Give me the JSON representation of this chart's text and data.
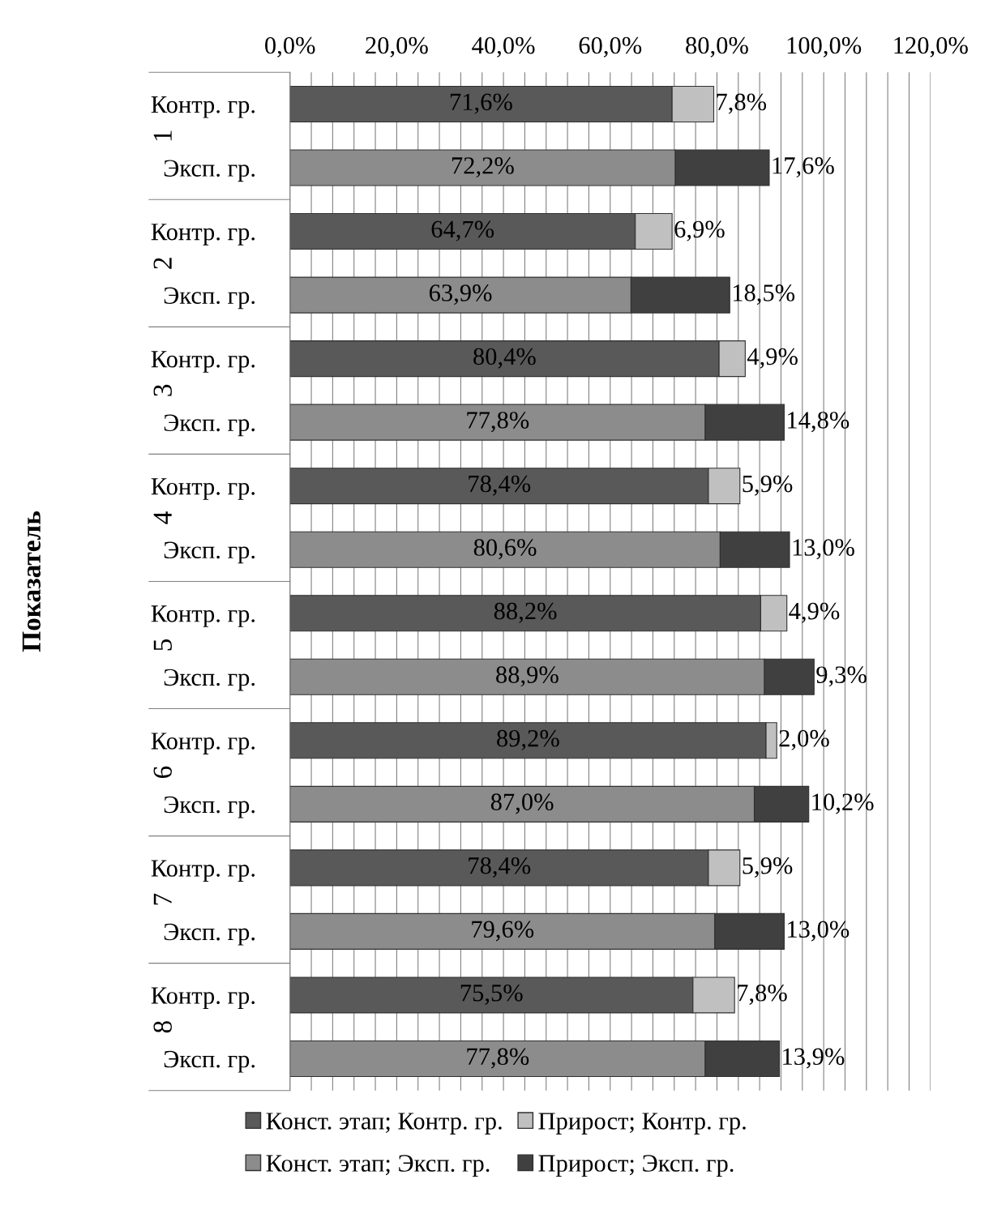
{
  "chart_data": {
    "type": "bar",
    "orientation": "horizontal",
    "stacked": true,
    "ylabel": "Показатель",
    "categories": [
      "Контр. гр.",
      "Эксп. гр.",
      "Контр. гр.",
      "Эксп. гр.",
      "Контр. гр.",
      "Эксп. гр.",
      "Контр. гр.",
      "Эксп. гр.",
      "Контр. гр.",
      "Эксп. гр.",
      "Контр. гр.",
      "Эксп. гр.",
      "Контр. гр.",
      "Эксп. гр.",
      "Контр. гр.",
      "Эксп. гр."
    ],
    "annotations": [
      "1",
      "2",
      "3",
      "4",
      "5",
      "6",
      "7",
      "8"
    ],
    "xlim": [
      0,
      120
    ],
    "xticks": [
      {
        "value": 0,
        "label": "0,0%"
      },
      {
        "value": 4,
        "label": null
      },
      {
        "value": 8,
        "label": null
      },
      {
        "value": 12,
        "label": null
      },
      {
        "value": 16,
        "label": null
      },
      {
        "value": 20,
        "label": "20,0%"
      },
      {
        "value": 24,
        "label": null
      },
      {
        "value": 28,
        "label": null
      },
      {
        "value": 32,
        "label": null
      },
      {
        "value": 36,
        "label": null
      },
      {
        "value": 40,
        "label": "40,0%"
      },
      {
        "value": 44,
        "label": null
      },
      {
        "value": 48,
        "label": null
      },
      {
        "value": 52,
        "label": null
      },
      {
        "value": 56,
        "label": null
      },
      {
        "value": 60,
        "label": "60,0%"
      },
      {
        "value": 64,
        "label": null
      },
      {
        "value": 68,
        "label": null
      },
      {
        "value": 72,
        "label": null
      },
      {
        "value": 76,
        "label": null
      },
      {
        "value": 80,
        "label": "80,0%"
      },
      {
        "value": 84,
        "label": null
      },
      {
        "value": 88,
        "label": null
      },
      {
        "value": 92,
        "label": null
      },
      {
        "value": 96,
        "label": null
      },
      {
        "value": 100,
        "label": "100,0%"
      },
      {
        "value": 104,
        "label": null
      },
      {
        "value": 108,
        "label": null
      },
      {
        "value": 112,
        "label": null
      },
      {
        "value": 116,
        "label": null
      },
      {
        "value": 120,
        "label": "120,0%"
      }
    ],
    "grid": "x",
    "legend": "bottom",
    "series": [
      {
        "name": "Конст. этап; Контр. гр.",
        "color": "#595959",
        "values": [
          71.6,
          null,
          64.7,
          null,
          80.4,
          null,
          78.4,
          null,
          88.2,
          null,
          89.2,
          null,
          78.4,
          null,
          75.5,
          null
        ],
        "value_labels": [
          "71,6%",
          null,
          "64,7%",
          null,
          "80,4%",
          null,
          "78,4%",
          null,
          "88,2%",
          null,
          "89,2%",
          null,
          "78,4%",
          null,
          "75,5%",
          null
        ]
      },
      {
        "name": "Прирост; Контр. гр.",
        "color": "#c0c0c0",
        "values": [
          7.8,
          null,
          6.9,
          null,
          4.9,
          null,
          5.9,
          null,
          4.9,
          null,
          2.0,
          null,
          5.9,
          null,
          7.8,
          null
        ],
        "value_labels": [
          "7,8%",
          null,
          "6,9%",
          null,
          "4,9%",
          null,
          "5,9%",
          null,
          "4,9%",
          null,
          "2,0%",
          null,
          "5,9%",
          null,
          "7,8%",
          null
        ]
      },
      {
        "name": "Конст. этап; Эксп. гр.",
        "color": "#8c8c8c",
        "values": [
          null,
          72.2,
          null,
          63.9,
          null,
          77.8,
          null,
          80.6,
          null,
          88.9,
          null,
          87.0,
          null,
          79.6,
          null,
          77.8
        ],
        "value_labels": [
          null,
          "72,2%",
          null,
          "63,9%",
          null,
          "77,8%",
          null,
          "80,6%",
          null,
          "88,9%",
          null,
          "87,0%",
          null,
          "79,6%",
          null,
          "77,8%"
        ]
      },
      {
        "name": "Прирост; Эксп. гр.",
        "color": "#404040",
        "values": [
          null,
          17.6,
          null,
          18.5,
          null,
          14.8,
          null,
          13.0,
          null,
          9.3,
          null,
          10.2,
          null,
          13.0,
          null,
          13.9
        ],
        "value_labels": [
          null,
          "17,6%",
          null,
          "18,5%",
          null,
          "14,8%",
          null,
          "13,0%",
          null,
          "9,3%",
          null,
          "10,2%",
          null,
          "13,0%",
          null,
          "13,9%"
        ]
      }
    ]
  }
}
